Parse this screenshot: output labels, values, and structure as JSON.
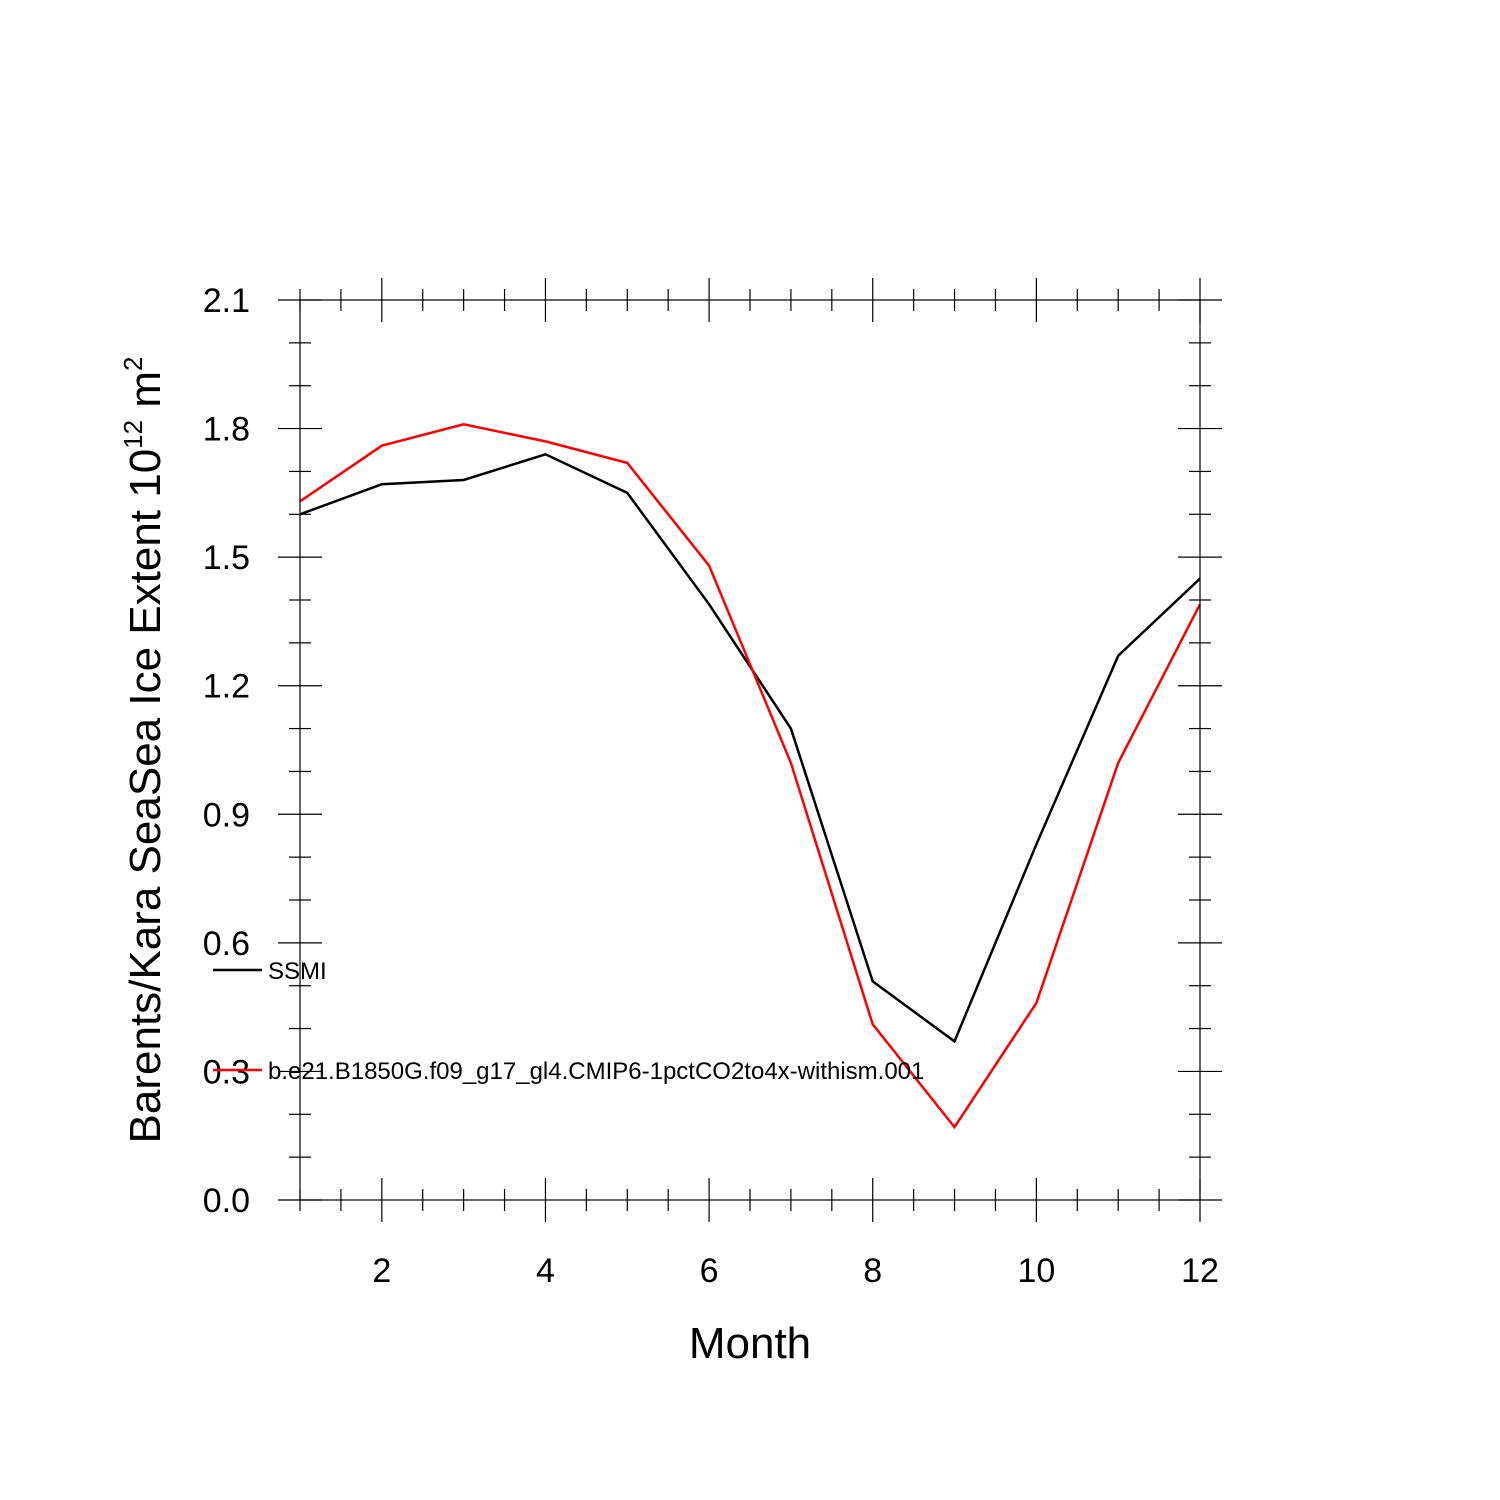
{
  "chart_data": {
    "type": "line",
    "xlabel": "Month",
    "ylabel": "Barents/Kara SeaSea Ice Extent 10",
    "ylabel_sup_exp": "12",
    "ylabel_unit": " m",
    "ylabel_sup_unit": "2",
    "xlim": [
      1,
      12
    ],
    "ylim": [
      0.0,
      2.1
    ],
    "x_ticks": [
      2,
      4,
      6,
      8,
      10,
      12
    ],
    "y_ticks": [
      0.0,
      0.3,
      0.6,
      0.9,
      1.2,
      1.5,
      1.8,
      2.1
    ],
    "x_tick_labels": [
      "2",
      "4",
      "6",
      "8",
      "10",
      "12"
    ],
    "y_tick_labels": [
      "0.0",
      "0.3",
      "0.6",
      "0.9",
      "1.2",
      "1.5",
      "1.8",
      "2.1"
    ],
    "x": [
      1,
      2,
      3,
      4,
      5,
      6,
      7,
      8,
      9,
      10,
      11,
      12
    ],
    "series": [
      {
        "name": "SSMI",
        "color": "#000000",
        "values": [
          1.6,
          1.67,
          1.68,
          1.74,
          1.65,
          1.39,
          1.1,
          0.51,
          0.37,
          0.83,
          1.27,
          1.45
        ]
      },
      {
        "name": "b.e21.B1850G.f09_g17_gl4.CMIP6-1pctCO2to4x-withism.001",
        "color": "#ff0000",
        "values": [
          1.63,
          1.76,
          1.81,
          1.77,
          1.72,
          1.48,
          1.02,
          0.41,
          0.17,
          0.46,
          1.02,
          1.39
        ]
      }
    ],
    "grid": false,
    "legend_placement": "lower-left inside"
  }
}
